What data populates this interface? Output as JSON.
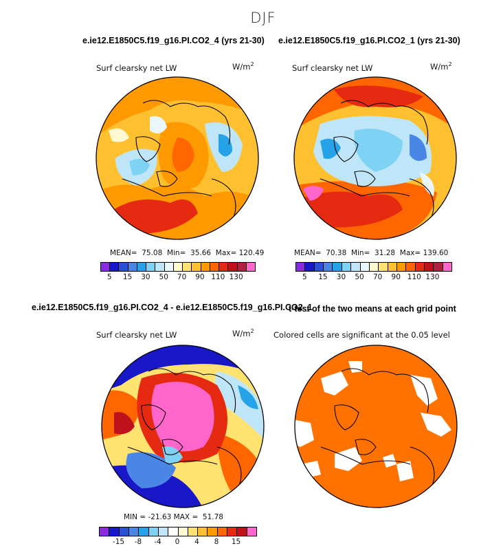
{
  "season": "DJF",
  "panels": {
    "p1": {
      "case_title": "e.ie12.E1850C5.f19_g16.PI.CO2_4 (yrs 21-30)",
      "variable": "Surf clearsky net LW",
      "units": "W/m",
      "units_exp": "2",
      "stats": "MEAN=  75.08  Min=  35.66  Max= 120.49"
    },
    "p2": {
      "case_title": "e.ie12.E1850C5.f19_g16.PI.CO2_1 (yrs 21-30)",
      "variable": "Surf clearsky net LW",
      "units": "W/m",
      "units_exp": "2",
      "stats": "MEAN=  70.38  Min=  31.28  Max= 139.60"
    },
    "p3": {
      "case_title": "e.ie12.E1850C5.f19_g16.PI.CO2_4 - e.ie12.E1850C5.f19_g16.PI.CO2_1",
      "variable": "Surf clearsky net LW",
      "units": "W/m",
      "units_exp": "2",
      "stats": "MIN = -21.63 MAX =  51.78"
    },
    "p4": {
      "case_title": "t-test of the two means at each grid point",
      "subtitle": "Colored cells are significant at the 0.05 level"
    }
  },
  "colorbar_abs": {
    "colors": [
      "#8a2be2",
      "#1818c8",
      "#2b50d8",
      "#4a86e6",
      "#25a2e8",
      "#7ed3f4",
      "#bfe6f8",
      "#e9f7fd",
      "#fff8d0",
      "#ffe270",
      "#ffc030",
      "#ff9900",
      "#ff6600",
      "#e62a12",
      "#c0101a",
      "#b02040",
      "#ff66cc"
    ],
    "ticks": [
      "5",
      "15",
      "30",
      "50",
      "70",
      "90",
      "110",
      "130"
    ]
  },
  "colorbar_diff": {
    "colors": [
      "#8a2be2",
      "#1818c8",
      "#2b50d8",
      "#4a86e6",
      "#25a2e8",
      "#7ed3f4",
      "#bfe6f8",
      "#ffffff",
      "#fff8d0",
      "#ffe270",
      "#ffc030",
      "#ff9900",
      "#ff6600",
      "#e62a12",
      "#c0101a",
      "#ff66cc"
    ],
    "ticks": [
      "-15",
      "-8",
      "-4",
      "0",
      "4",
      "8",
      "15"
    ]
  }
}
